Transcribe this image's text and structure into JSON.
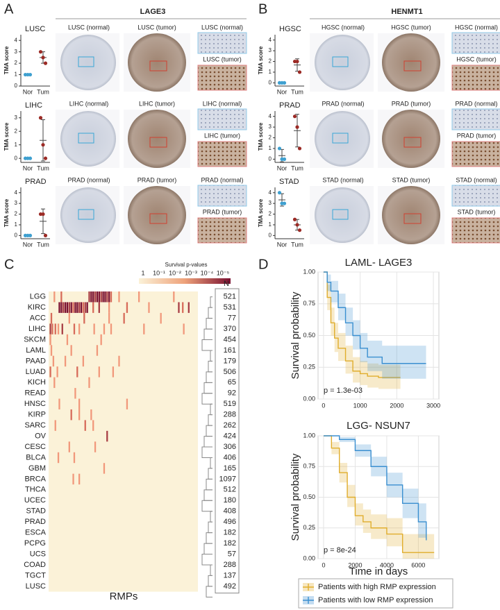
{
  "panels": [
    {
      "label": "A",
      "title": "LAGE3",
      "rows": [
        {
          "cancer": "LUSC",
          "ylabel": "TMA score",
          "categories": [
            "Nor",
            "Tum"
          ],
          "ylim": [
            0,
            4.5
          ],
          "yticks": [
            0,
            1,
            2,
            3,
            4
          ],
          "points": [
            [
              1,
              1,
              1
            ],
            [
              3,
              2.5,
              2
            ]
          ],
          "mean": [
            1,
            2.5
          ],
          "sd": [
            0,
            0.5
          ],
          "colors": [
            "#3fa0d0",
            "#9b2a25"
          ],
          "images": [
            "LUSC (normal)",
            "LUSC (tumor)",
            "LUSC (normal)",
            "LUSC (tumor)"
          ]
        },
        {
          "cancer": "LIHC",
          "ylabel": "TMA score",
          "categories": [
            "Nor",
            "Tum"
          ],
          "ylim": [
            -0.3,
            3.5
          ],
          "yticks": [
            0,
            1,
            2,
            3
          ],
          "points": [
            [
              0,
              0,
              0
            ],
            [
              3,
              1,
              0
            ]
          ],
          "mean": [
            0,
            1.33
          ],
          "sd": [
            0,
            1.53
          ],
          "colors": [
            "#3fa0d0",
            "#9b2a25"
          ],
          "images": [
            "LIHC (normal)",
            "LIHC (tumor)",
            "LIHC (normal)",
            "LIHC (tumor)"
          ]
        },
        {
          "cancer": "PRAD",
          "ylabel": "TMA score",
          "categories": [
            "Nor",
            "Tum"
          ],
          "ylim": [
            -0.3,
            4.5
          ],
          "yticks": [
            0,
            1,
            2,
            3,
            4
          ],
          "points": [
            [
              0,
              0,
              0
            ],
            [
              2,
              2,
              0
            ]
          ],
          "mean": [
            0,
            1.33
          ],
          "sd": [
            0,
            1.15
          ],
          "colors": [
            "#3fa0d0",
            "#9b2a25"
          ],
          "images": [
            "PRAD (normal)",
            "PRAD (tumor)",
            "PRAD (normal)",
            "PRAD (tumor)"
          ]
        }
      ]
    },
    {
      "label": "B",
      "title": "HENMT1",
      "rows": [
        {
          "cancer": "HGSC",
          "ylabel": "TMA score",
          "categories": [
            "Nor",
            "Tum"
          ],
          "ylim": [
            -0.3,
            4.5
          ],
          "yticks": [
            0,
            1,
            2,
            3,
            4
          ],
          "points": [
            [
              0,
              0,
              0
            ],
            [
              2,
              2,
              1
            ]
          ],
          "mean": [
            0,
            1.67
          ],
          "sd": [
            0,
            0.58
          ],
          "colors": [
            "#3fa0d0",
            "#9b2a25"
          ],
          "images": [
            "HGSC (normal)",
            "HGSC (tumor)",
            "HGSC (normal)",
            "HGSC (tumor)"
          ]
        },
        {
          "cancer": "PRAD",
          "ylabel": "TMA score",
          "categories": [
            "Nor",
            "Tum"
          ],
          "ylim": [
            -0.3,
            4.5
          ],
          "yticks": [
            0,
            1,
            2,
            3,
            4
          ],
          "points": [
            [
              1,
              0,
              0
            ],
            [
              4,
              3,
              1
            ]
          ],
          "mean": [
            0.33,
            2.67
          ],
          "sd": [
            0.58,
            1.53
          ],
          "colors": [
            "#3fa0d0",
            "#9b2a25"
          ],
          "images": [
            "PRAD (normal)",
            "PRAD (tumor)",
            "PRAD (normal)",
            "PRAD (tumor)"
          ]
        },
        {
          "cancer": "STAD",
          "ylabel": "TMA score",
          "categories": [
            "Nor",
            "Tum"
          ],
          "ylim": [
            -0.3,
            4.5
          ],
          "yticks": [
            0,
            1,
            2,
            3,
            4
          ],
          "points": [
            [
              4,
              3,
              3
            ],
            [
              1.5,
              1,
              0.5
            ]
          ],
          "mean": [
            3.33,
            1
          ],
          "sd": [
            0.58,
            0.5
          ],
          "colors": [
            "#3fa0d0",
            "#9b2a25"
          ],
          "images": [
            "STAD (normal)",
            "STAD (tumor)",
            "STAD (normal)",
            "STAD (tumor)"
          ]
        }
      ]
    }
  ],
  "heatmap": {
    "label": "C",
    "legend_title": "Survival p-values",
    "legend_ticks": [
      "1",
      "10⁻¹",
      "10⁻²",
      "10⁻³",
      "10⁻⁴",
      "10⁻⁵"
    ],
    "xlabel": "RMPs",
    "n_header": "N",
    "rows": [
      {
        "name": "LGG",
        "n": 521,
        "hits": [
          [
            5,
            2
          ],
          [
            12,
            3
          ],
          [
            40,
            4
          ],
          [
            42,
            5
          ],
          [
            44,
            5
          ],
          [
            46,
            4
          ],
          [
            48,
            5
          ],
          [
            50,
            5
          ],
          [
            52,
            4
          ],
          [
            54,
            5
          ],
          [
            56,
            5
          ],
          [
            58,
            4
          ],
          [
            60,
            5
          ],
          [
            62,
            3
          ],
          [
            70,
            2
          ],
          [
            90,
            2
          ],
          [
            125,
            2
          ]
        ]
      },
      {
        "name": "KIRC",
        "n": 531,
        "hits": [
          [
            10,
            5
          ],
          [
            12,
            5
          ],
          [
            14,
            4
          ],
          [
            16,
            5
          ],
          [
            18,
            5
          ],
          [
            20,
            4
          ],
          [
            22,
            5
          ],
          [
            24,
            3
          ],
          [
            26,
            5
          ],
          [
            28,
            5
          ],
          [
            30,
            4
          ],
          [
            32,
            5
          ],
          [
            34,
            3
          ],
          [
            36,
            4
          ],
          [
            38,
            5
          ],
          [
            44,
            3
          ],
          [
            50,
            4
          ],
          [
            60,
            2
          ],
          [
            78,
            3
          ],
          [
            100,
            2
          ],
          [
            130,
            4
          ],
          [
            134,
            3
          ],
          [
            140,
            4
          ]
        ]
      },
      {
        "name": "ACC",
        "n": 77,
        "hits": [
          [
            2,
            3
          ],
          [
            20,
            2
          ],
          [
            35,
            3
          ],
          [
            60,
            2
          ],
          [
            75,
            3
          ],
          [
            112,
            2
          ]
        ]
      },
      {
        "name": "LIHC",
        "n": 370,
        "hits": [
          [
            1,
            4
          ],
          [
            3,
            3
          ],
          [
            6,
            3
          ],
          [
            9,
            2
          ],
          [
            13,
            4
          ],
          [
            25,
            3
          ],
          [
            30,
            2
          ],
          [
            45,
            2
          ],
          [
            55,
            2
          ],
          [
            62,
            2
          ],
          [
            95,
            2
          ],
          [
            135,
            2
          ]
        ]
      },
      {
        "name": "SKCM",
        "n": 454,
        "hits": [
          [
            1,
            2
          ],
          [
            18,
            2
          ],
          [
            52,
            2
          ]
        ]
      },
      {
        "name": "LAML",
        "n": 161,
        "hits": [
          [
            2,
            2
          ],
          [
            22,
            2
          ],
          [
            48,
            2
          ]
        ]
      },
      {
        "name": "PAAD",
        "n": 179,
        "hits": [
          [
            4,
            2
          ],
          [
            16,
            2
          ],
          [
            34,
            2
          ],
          [
            70,
            2
          ]
        ]
      },
      {
        "name": "LUAD",
        "n": 506,
        "hits": [
          [
            1,
            3
          ],
          [
            8,
            2
          ],
          [
            28,
            3
          ],
          [
            50,
            2
          ],
          [
            64,
            2
          ]
        ]
      },
      {
        "name": "KICH",
        "n": 65,
        "hits": [
          [
            5,
            2
          ],
          [
            40,
            2
          ]
        ]
      },
      {
        "name": "READ",
        "n": 92,
        "hits": [
          [
            26,
            2
          ]
        ]
      },
      {
        "name": "HNSC",
        "n": 519,
        "hits": [
          [
            10,
            2
          ],
          [
            30,
            2
          ],
          [
            78,
            2
          ]
        ]
      },
      {
        "name": "KIRP",
        "n": 288,
        "hits": [
          [
            22,
            3
          ],
          [
            30,
            2
          ],
          [
            42,
            2
          ]
        ]
      },
      {
        "name": "SARC",
        "n": 262,
        "hits": [
          [
            6,
            2
          ],
          [
            36,
            3
          ],
          [
            44,
            2
          ]
        ]
      },
      {
        "name": "OV",
        "n": 424,
        "hits": [
          [
            58,
            4
          ]
        ]
      },
      {
        "name": "CESC",
        "n": 306,
        "hits": [
          [
            20,
            2
          ],
          [
            46,
            2
          ]
        ]
      },
      {
        "name": "BLCA",
        "n": 406,
        "hits": [
          [
            9,
            2
          ],
          [
            25,
            2
          ]
        ]
      },
      {
        "name": "GBM",
        "n": 165,
        "hits": [
          [
            55,
            2
          ]
        ]
      },
      {
        "name": "BRCA",
        "n": 1097,
        "hits": [
          [
            24,
            2
          ],
          [
            30,
            2
          ]
        ]
      },
      {
        "name": "THCA",
        "n": 512,
        "hits": []
      },
      {
        "name": "UCEC",
        "n": 180,
        "hits": []
      },
      {
        "name": "STAD",
        "n": 408,
        "hits": []
      },
      {
        "name": "PRAD",
        "n": 496,
        "hits": []
      },
      {
        "name": "ESCA",
        "n": 182,
        "hits": []
      },
      {
        "name": "PCPG",
        "n": 182,
        "hits": []
      },
      {
        "name": "UCS",
        "n": 57,
        "hits": []
      },
      {
        "name": "COAD",
        "n": 288,
        "hits": []
      },
      {
        "name": "TGCT",
        "n": 137,
        "hits": []
      },
      {
        "name": "LUSC",
        "n": 492,
        "hits": []
      }
    ]
  },
  "km": {
    "label": "D",
    "ylabel": "Survival probability",
    "xlabel": "Time in days",
    "ylim": [
      0,
      1
    ],
    "yticks": [
      {
        "value": 0,
        "label": "0.00"
      },
      {
        "value": 0.25,
        "label": "0.25"
      },
      {
        "value": 0.5,
        "label": "0.50"
      },
      {
        "value": 0.75,
        "label": "0.75"
      },
      {
        "value": 1,
        "label": "1.00"
      }
    ],
    "legend": [
      {
        "name": "Patients with high RMP expression",
        "color": "#e0ad2c"
      },
      {
        "name": "Patients with low RMP expression",
        "color": "#3a8fd0"
      }
    ],
    "charts": [
      {
        "title": "LAML- LAGE3",
        "annotation": "p = 1.3e-03",
        "xlim": [
          -150,
          3150
        ],
        "xticks": [
          0,
          1000,
          2000,
          3000
        ],
        "series": [
          {
            "x": [
              0,
              100,
              200,
              300,
              400,
              600,
              800,
              1000,
              1200,
              1500,
              2100
            ],
            "values": [
              1,
              0.8,
              0.6,
              0.48,
              0.4,
              0.3,
              0.22,
              0.2,
              0.18,
              0.17,
              0.17
            ],
            "lower": [
              1,
              0.7,
              0.5,
              0.37,
              0.3,
              0.2,
              0.13,
              0.11,
              0.09,
              0.08,
              0.08
            ],
            "upper": [
              1,
              0.9,
              0.72,
              0.6,
              0.52,
              0.42,
              0.33,
              0.3,
              0.28,
              0.27,
              0.27
            ]
          },
          {
            "x": [
              0,
              100,
              200,
              400,
              600,
              800,
              1000,
              1200,
              1600,
              2000,
              2800
            ],
            "values": [
              1,
              0.92,
              0.85,
              0.72,
              0.6,
              0.5,
              0.4,
              0.33,
              0.28,
              0.28,
              0.28
            ],
            "lower": [
              1,
              0.85,
              0.76,
              0.62,
              0.5,
              0.39,
              0.29,
              0.22,
              0.16,
              0.16,
              0.16
            ],
            "upper": [
              1,
              0.98,
              0.93,
              0.83,
              0.72,
              0.62,
              0.52,
              0.46,
              0.42,
              0.42,
              0.42
            ]
          }
        ]
      },
      {
        "title": "LGG- NSUN7",
        "annotation": "p = 8e-24",
        "xlim": [
          -350,
          7300
        ],
        "xticks": [
          0,
          2000,
          4000,
          6000
        ],
        "series": [
          {
            "x": [
              0,
              500,
              1000,
              1500,
              2000,
              2500,
              3000,
              4000,
              5000,
              7000
            ],
            "values": [
              1,
              0.9,
              0.7,
              0.5,
              0.35,
              0.3,
              0.25,
              0.2,
              0.05,
              0.05
            ],
            "lower": [
              1,
              0.85,
              0.62,
              0.42,
              0.27,
              0.21,
              0.16,
              0.1,
              0,
              0
            ],
            "upper": [
              1,
              0.95,
              0.78,
              0.6,
              0.45,
              0.4,
              0.36,
              0.33,
              0.2,
              0.2
            ]
          },
          {
            "x": [
              0,
              1000,
              2000,
              3000,
              4000,
              5000,
              6000,
              6500
            ],
            "values": [
              1,
              0.97,
              0.88,
              0.75,
              0.6,
              0.45,
              0.3,
              0.15
            ],
            "lower": [
              1,
              0.95,
              0.83,
              0.67,
              0.5,
              0.33,
              0.17,
              0.05
            ],
            "upper": [
              1,
              0.99,
              0.93,
              0.83,
              0.7,
              0.57,
              0.45,
              0.35
            ]
          }
        ]
      }
    ]
  }
}
